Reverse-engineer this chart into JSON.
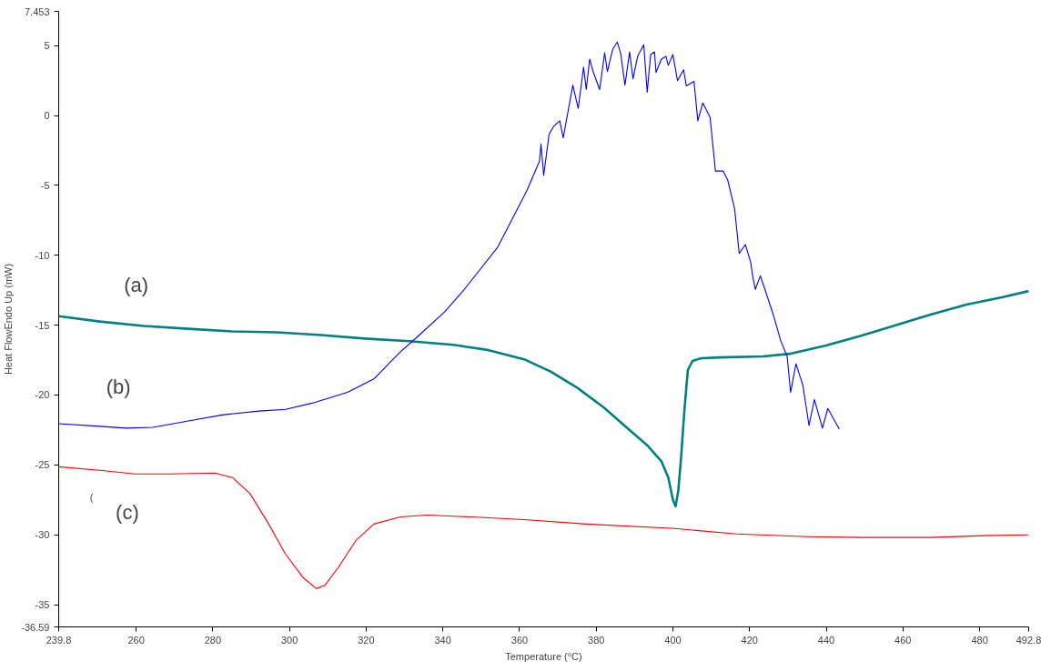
{
  "chart_data": {
    "type": "line",
    "xlabel": "Temperature (°C)",
    "ylabel": "Heat FlowEndo Up (mW)",
    "xlim": [
      239.8,
      492.8
    ],
    "ylim": [
      -36.59,
      7.453
    ],
    "xticks": [
      239.8,
      260,
      280,
      300,
      320,
      340,
      360,
      380,
      400,
      420,
      440,
      460,
      480,
      492.8
    ],
    "yticks": [
      7.453,
      5,
      0,
      -5,
      -10,
      -15,
      -20,
      -25,
      -30,
      -35,
      -36.59
    ],
    "grid": false,
    "marker": "none",
    "line_style": "solid",
    "series": [
      {
        "name": "(a)",
        "color": "#008080",
        "x": [
          239.8,
          250.5,
          262.0,
          273.6,
          285.1,
          296.7,
          308.2,
          319.7,
          331.3,
          342.8,
          352.0,
          361.2,
          368.2,
          375.1,
          382.0,
          388.9,
          393.5,
          397.0,
          398.8,
          400.0,
          400.7,
          401.4,
          402.1,
          403.0,
          403.9,
          405.1,
          407.4,
          412.0,
          423.5,
          430.4,
          439.7,
          448.9,
          458.1,
          467.4,
          476.6,
          485.8,
          492.8
        ],
        "values": [
          -14.36,
          -14.74,
          -15.06,
          -15.26,
          -15.45,
          -15.51,
          -15.71,
          -15.96,
          -16.15,
          -16.41,
          -16.79,
          -17.44,
          -18.33,
          -19.49,
          -20.9,
          -22.56,
          -23.65,
          -24.74,
          -25.9,
          -27.5,
          -27.95,
          -26.86,
          -24.62,
          -21.09,
          -18.21,
          -17.56,
          -17.37,
          -17.31,
          -17.24,
          -17.05,
          -16.47,
          -15.77,
          -15.0,
          -14.23,
          -13.53,
          -13.01,
          -12.56
        ]
      },
      {
        "name": "(b)",
        "color": "#0000ff",
        "x": [
          239.8,
          250.5,
          257.4,
          264.4,
          273.6,
          282.8,
          292.0,
          299.0,
          305.9,
          315.1,
          322.0,
          326.6,
          328.9,
          333.6,
          340.5,
          345.6,
          354.3,
          361.9,
          365.2,
          365.6,
          366.3,
          367.7,
          368.9,
          370.5,
          371.4,
          373.9,
          375.3,
          376.7,
          377.4,
          378.3,
          379.2,
          380.9,
          382.2,
          382.9,
          384.3,
          385.5,
          386.4,
          387.5,
          388.7,
          389.6,
          390.8,
          392.4,
          393.3,
          394.2,
          395.2,
          395.6,
          397.0,
          398.2,
          398.8,
          400.0,
          401.2,
          402.8,
          403.5,
          405.5,
          406.5,
          407.8,
          409.7,
          411.1,
          413.1,
          414.3,
          416.1,
          417.3,
          418.9,
          420.3,
          420.8,
          421.5,
          422.8,
          424.0,
          426.3,
          428.1,
          429.8,
          430.7,
          432.1,
          433.9,
          435.5,
          436.9,
          439.0,
          440.4,
          443.4
        ],
        "values": [
          -22.05,
          -22.24,
          -22.37,
          -22.31,
          -21.86,
          -21.41,
          -21.15,
          -21.03,
          -20.58,
          -19.81,
          -18.85,
          -17.56,
          -16.92,
          -15.77,
          -14.04,
          -12.44,
          -9.42,
          -5.38,
          -3.27,
          -2.05,
          -4.29,
          -1.35,
          -0.77,
          -0.38,
          -1.6,
          2.18,
          0.51,
          3.46,
          1.86,
          4.04,
          3.14,
          1.86,
          4.49,
          3.14,
          4.74,
          5.26,
          4.42,
          2.18,
          4.55,
          2.63,
          4.23,
          5.06,
          1.67,
          4.36,
          4.55,
          3.08,
          4.04,
          4.23,
          3.59,
          4.36,
          2.5,
          3.27,
          2.12,
          2.44,
          -0.38,
          0.9,
          -0.13,
          -3.97,
          -3.97,
          -4.62,
          -6.67,
          -9.87,
          -9.23,
          -10.51,
          -11.47,
          -12.44,
          -11.47,
          -12.44,
          -14.36,
          -16.09,
          -17.24,
          -19.81,
          -17.76,
          -19.29,
          -22.18,
          -20.32,
          -22.37,
          -20.96,
          -22.44
        ]
      },
      {
        "name": "(c)",
        "color": "#ff0000",
        "x": [
          239.8,
          250.5,
          259.7,
          268.9,
          280.5,
          285.1,
          289.7,
          294.3,
          298.9,
          303.6,
          307.0,
          309.3,
          312.8,
          317.4,
          322.0,
          328.9,
          335.9,
          347.4,
          361.2,
          377.4,
          400.5,
          416.6,
          435.1,
          448.9,
          467.4,
          481.2,
          492.7
        ],
        "values": [
          -25.13,
          -25.38,
          -25.64,
          -25.64,
          -25.58,
          -25.9,
          -27.05,
          -29.1,
          -31.35,
          -33.08,
          -33.85,
          -33.59,
          -32.31,
          -30.38,
          -29.23,
          -28.72,
          -28.59,
          -28.72,
          -28.91,
          -29.23,
          -29.55,
          -29.94,
          -30.13,
          -30.19,
          -30.19,
          -30.06,
          -30.0
        ]
      }
    ],
    "annotations": [
      "("
    ]
  }
}
